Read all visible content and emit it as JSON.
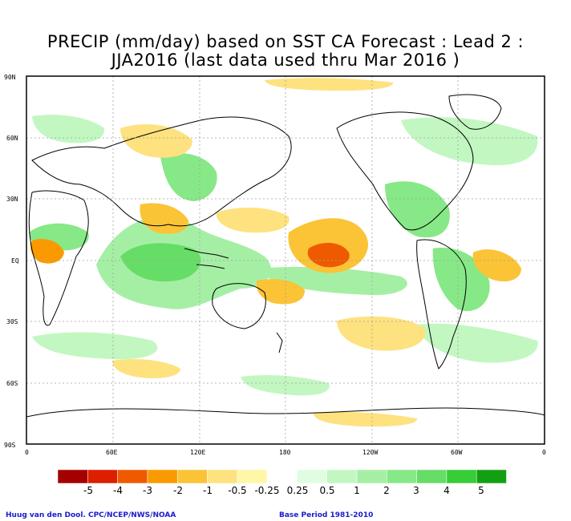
{
  "title": {
    "line1": "PRECIP (mm/day) based on SST CA Forecast : Lead 2 :",
    "line2": "JJA2016 (last data used thru Mar 2016 )"
  },
  "axes": {
    "lat_labels": [
      "90N",
      "60N",
      "30N",
      "EQ",
      "30S",
      "60S",
      "90S"
    ],
    "lon_labels": [
      "0",
      "60E",
      "120E",
      "180",
      "120W",
      "60W",
      "0"
    ]
  },
  "colorbar": {
    "colors": [
      "#a50000",
      "#dd1f00",
      "#ef5a00",
      "#f99b00",
      "#fbc336",
      "#fde27f",
      "#fff6a8",
      "#ffffff",
      "#e1fde1",
      "#c2f7c2",
      "#a5efa5",
      "#87e887",
      "#66dd66",
      "#38cc38",
      "#12a012"
    ],
    "labels": [
      "-5",
      "-4",
      "-3",
      "-2",
      "-1",
      "-0.5",
      "-0.25",
      "0.25",
      "0.5",
      "1",
      "2",
      "3",
      "4",
      "5"
    ]
  },
  "credits": {
    "left": "Huug van den Dool. CPC/NCEP/NWS/NOAA",
    "right": "Base Period 1981-2010"
  },
  "map": {
    "dry_color": "#f5b042",
    "dry_light": "#fde08c",
    "wet_color": "#7fdc7f",
    "wet_light": "#c8f2c0",
    "coast_color": "#000000",
    "grid_color": "#a0a0a0"
  }
}
